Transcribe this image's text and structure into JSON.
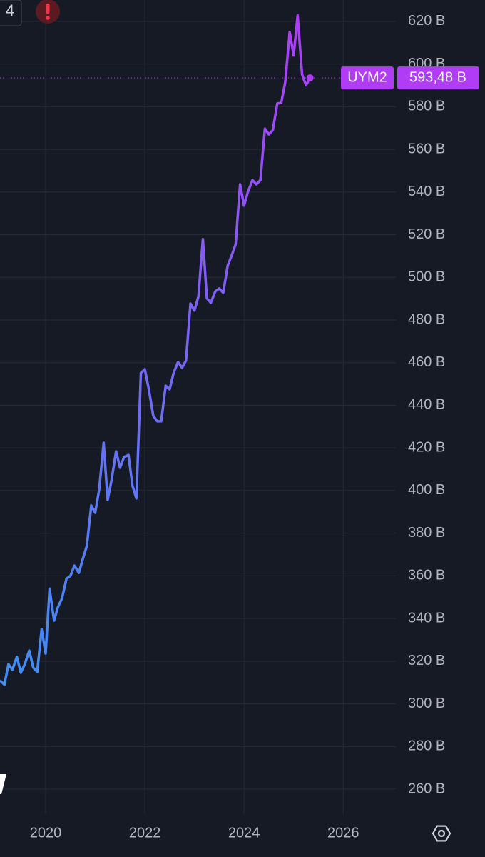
{
  "ui": {
    "toolbar_number": "4"
  },
  "chart_data": {
    "type": "line",
    "x": [
      2019.08,
      2019.17,
      2019.25,
      2019.33,
      2019.42,
      2019.5,
      2019.58,
      2019.67,
      2019.75,
      2019.83,
      2019.92,
      2020.0,
      2020.08,
      2020.17,
      2020.25,
      2020.33,
      2020.42,
      2020.5,
      2020.58,
      2020.67,
      2020.75,
      2020.83,
      2020.92,
      2021.0,
      2021.08,
      2021.17,
      2021.25,
      2021.33,
      2021.42,
      2021.5,
      2021.58,
      2021.67,
      2021.75,
      2021.83,
      2021.92,
      2022.0,
      2022.08,
      2022.17,
      2022.25,
      2022.33,
      2022.42,
      2022.5,
      2022.58,
      2022.67,
      2022.75,
      2022.83,
      2022.92,
      2023.0,
      2023.08,
      2023.17,
      2023.25,
      2023.33,
      2023.42,
      2023.5,
      2023.58,
      2023.67,
      2023.75,
      2023.83,
      2023.92,
      2024.0,
      2024.08,
      2024.17,
      2024.25,
      2024.33,
      2024.42,
      2024.5,
      2024.58,
      2024.67,
      2024.75,
      2024.83,
      2024.92,
      2025.0,
      2025.08,
      2025.17,
      2025.25,
      2025.33
    ],
    "series": [
      {
        "name": "UYM2",
        "color": "#b13cf5",
        "gradient_start": "#2a9df4",
        "values": [
          311,
          309,
          318.6,
          316,
          322,
          314.6,
          318.6,
          325,
          317,
          315,
          335,
          323.6,
          354,
          339,
          345.5,
          349.4,
          358.7,
          360,
          364.8,
          361.4,
          368,
          374,
          393,
          389.6,
          400.6,
          422.4,
          395.6,
          405,
          418.4,
          410.7,
          415.7,
          416.7,
          402.3,
          396.3,
          455.2,
          456.9,
          447.5,
          435.1,
          432.5,
          432.5,
          449.2,
          447.5,
          455.2,
          460.3,
          457.6,
          461,
          487.7,
          484.4,
          491,
          517.9,
          490.2,
          488.1,
          493.4,
          494.8,
          492.8,
          505.5,
          510.2,
          515.5,
          543.6,
          533.6,
          540.2,
          545.6,
          543.6,
          545.6,
          569.7,
          567,
          569,
          581.5,
          581.8,
          591.5,
          615,
          604,
          622.7,
          595,
          590,
          593.48
        ],
        "value_labels": [
          null,
          null,
          null,
          null,
          null,
          null,
          null,
          null,
          null,
          null,
          null,
          null,
          null,
          null,
          null,
          null,
          null,
          null,
          null,
          null,
          null,
          null,
          null,
          null,
          null,
          null,
          null,
          null,
          null,
          null,
          null,
          null,
          null,
          null,
          null,
          null,
          null,
          null,
          null,
          null,
          null,
          null,
          null,
          null,
          null,
          null,
          null,
          null,
          null,
          null,
          null,
          null,
          null,
          null,
          null,
          null,
          null,
          null,
          null,
          null,
          null,
          null,
          null,
          null,
          null,
          null,
          null,
          null,
          null,
          null,
          null,
          null,
          null,
          null,
          null,
          "593,48 B"
        ]
      }
    ],
    "xlim": [
      2019.08,
      2027.06
    ],
    "xticks": [
      2020,
      2022,
      2024,
      2026
    ],
    "ylim": [
      248.3,
      630
    ],
    "yticks": [
      {
        "value": 260,
        "label": "260 B"
      },
      {
        "value": 280,
        "label": "280 B"
      },
      {
        "value": 300,
        "label": "300 B"
      },
      {
        "value": 320,
        "label": "320 B"
      },
      {
        "value": 340,
        "label": "340 B"
      },
      {
        "value": 360,
        "label": "360 B"
      },
      {
        "value": 380,
        "label": "380 B"
      },
      {
        "value": 400,
        "label": "400 B"
      },
      {
        "value": 420,
        "label": "420 B"
      },
      {
        "value": 440,
        "label": "440 B"
      },
      {
        "value": 460,
        "label": "460 B"
      },
      {
        "value": 480,
        "label": "480 B"
      },
      {
        "value": 500,
        "label": "500 B"
      },
      {
        "value": 520,
        "label": "520 B"
      },
      {
        "value": 540,
        "label": "540 B"
      },
      {
        "value": 560,
        "label": "560 B"
      },
      {
        "value": 580,
        "label": "580 B"
      },
      {
        "value": 600,
        "label": "600 B"
      },
      {
        "value": 620,
        "label": "620 B"
      }
    ],
    "grid": true
  }
}
